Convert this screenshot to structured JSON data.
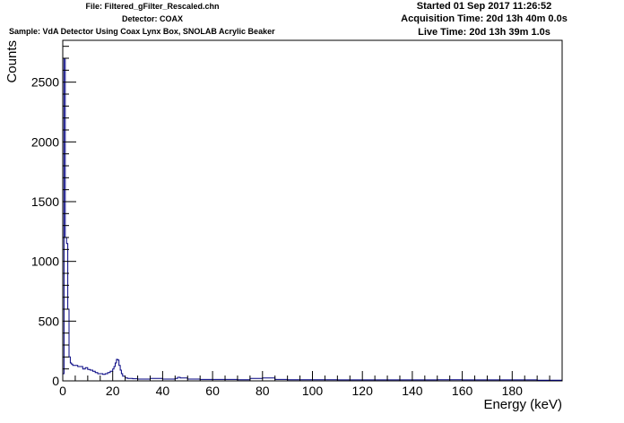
{
  "header": {
    "file": "File: Filtered_gFilter_Rescaled.chn",
    "detector": "Detector: COAX",
    "sample": "Sample: VdA Detector Using Coax Lynx Box, SNOLAB Acrylic Beaker",
    "started": "Started 01 Sep 2017 11:26:52",
    "acquisition_time": "Acquisition Time: 20d 13h 40m 0.0s",
    "live_time": "Live Time: 20d 13h 39m 1.0s"
  },
  "colors": {
    "histogram": "#000080",
    "axes": "#000000",
    "background": "#ffffff"
  },
  "chart_data": {
    "type": "histogram",
    "xlabel": "Energy (keV)",
    "ylabel": "Counts",
    "xlim": [
      0,
      200
    ],
    "ylim": [
      0,
      2850
    ],
    "x_ticks": [
      0,
      20,
      40,
      60,
      80,
      100,
      120,
      140,
      160,
      180
    ],
    "y_ticks": [
      0,
      500,
      1000,
      1500,
      2000,
      2500
    ],
    "grid": false,
    "legend": "none",
    "series": [
      {
        "x": [
          0,
          0.5,
          1,
          1.5,
          2,
          2.5,
          3,
          3.5,
          4,
          5,
          6,
          7,
          8,
          9,
          10,
          11,
          12,
          13,
          14,
          15,
          16,
          17,
          18,
          19,
          20,
          20.5,
          21,
          21.5,
          22,
          22.5,
          23,
          23.5,
          24,
          25,
          26,
          27,
          28,
          30,
          35,
          40,
          45,
          46,
          47,
          50,
          55,
          60,
          70,
          75,
          80,
          85,
          90,
          100,
          110,
          120,
          130,
          140,
          150,
          160,
          170,
          180,
          190,
          199.5
        ],
        "y": [
          60,
          2700,
          1200,
          1150,
          600,
          200,
          150,
          140,
          130,
          130,
          120,
          120,
          100,
          110,
          95,
          90,
          80,
          70,
          60,
          60,
          55,
          60,
          70,
          80,
          100,
          120,
          150,
          180,
          175,
          130,
          90,
          60,
          40,
          25,
          20,
          20,
          18,
          15,
          20,
          15,
          20,
          30,
          25,
          15,
          12,
          12,
          10,
          20,
          25,
          12,
          10,
          10,
          8,
          8,
          8,
          8,
          10,
          8,
          8,
          8,
          5,
          5
        ]
      }
    ]
  }
}
